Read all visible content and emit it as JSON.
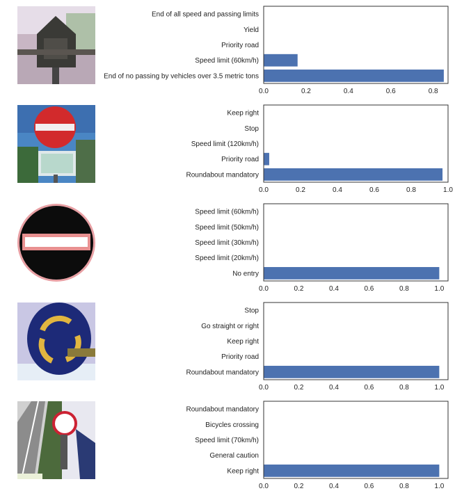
{
  "colors": {
    "bar": "#4c72b0",
    "axis": "#333333"
  },
  "chart_data": [
    {
      "type": "bar",
      "orientation": "horizontal",
      "thumbnail": "no-passing-end-sign-thumbnail",
      "categories": [
        "End of all speed and passing limits",
        "Yield",
        "Priority road",
        "Speed limit (60km/h)",
        "End of no passing by vehicles over 3.5 metric tons"
      ],
      "values": [
        0.0,
        0.0,
        0.0,
        0.16,
        0.85
      ],
      "xlim": [
        0,
        0.87
      ],
      "xticks": [
        "0.0",
        "0.2",
        "0.4",
        "0.6",
        "0.8"
      ],
      "xtick_values": [
        0,
        0.2,
        0.4,
        0.6,
        0.8
      ]
    },
    {
      "type": "bar",
      "orientation": "horizontal",
      "thumbnail": "no-entry-photo-thumbnail",
      "categories": [
        "Keep right",
        "Stop",
        "Speed limit (120km/h)",
        "Priority road",
        "Roundabout mandatory"
      ],
      "values": [
        0.0,
        0.0,
        0.0,
        0.03,
        0.97
      ],
      "xlim": [
        0,
        1.0
      ],
      "xticks": [
        "0.0",
        "0.2",
        "0.4",
        "0.6",
        "0.8",
        "1.0"
      ],
      "xtick_values": [
        0,
        0.2,
        0.4,
        0.6,
        0.8,
        1.0
      ]
    },
    {
      "type": "bar",
      "orientation": "horizontal",
      "thumbnail": "no-entry-sign-thumbnail",
      "categories": [
        "Speed limit (60km/h)",
        "Speed limit (50km/h)",
        "Speed limit (30km/h)",
        "Speed limit (20km/h)",
        "No entry"
      ],
      "values": [
        0.0,
        0.0,
        0.0,
        0.0,
        1.0
      ],
      "xlim": [
        0,
        1.05
      ],
      "xticks": [
        "0.0",
        "0.2",
        "0.4",
        "0.6",
        "0.8",
        "1.0"
      ],
      "xtick_values": [
        0,
        0.2,
        0.4,
        0.6,
        0.8,
        1.0
      ]
    },
    {
      "type": "bar",
      "orientation": "horizontal",
      "thumbnail": "roundabout-sign-thumbnail",
      "categories": [
        "Stop",
        "Go straight or right",
        "Keep right",
        "Priority road",
        "Roundabout mandatory"
      ],
      "values": [
        0.0,
        0.0,
        0.0,
        0.0,
        1.0
      ],
      "xlim": [
        0,
        1.05
      ],
      "xticks": [
        "0.0",
        "0.2",
        "0.4",
        "0.6",
        "0.8",
        "1.0"
      ],
      "xtick_values": [
        0,
        0.2,
        0.4,
        0.6,
        0.8,
        1.0
      ]
    },
    {
      "type": "bar",
      "orientation": "horizontal",
      "thumbnail": "keep-right-street-thumbnail",
      "categories": [
        "Roundabout mandatory",
        "Bicycles crossing",
        "Speed limit (70km/h)",
        "General caution",
        "Keep right"
      ],
      "values": [
        0.0,
        0.0,
        0.0,
        0.0,
        1.0
      ],
      "xlim": [
        0,
        1.05
      ],
      "xticks": [
        "0.0",
        "0.2",
        "0.4",
        "0.6",
        "0.8",
        "1.0"
      ],
      "xtick_values": [
        0,
        0.2,
        0.4,
        0.6,
        0.8,
        1.0
      ]
    }
  ]
}
